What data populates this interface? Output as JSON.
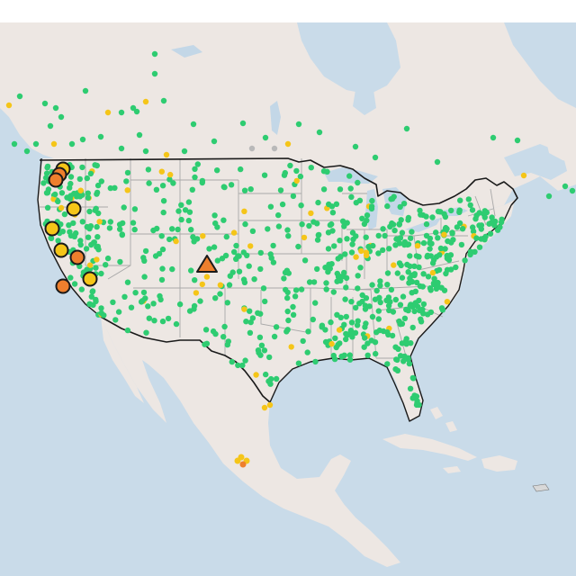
{
  "map": {
    "colors": {
      "water": "#c9dbe9",
      "land": "#ede7e3",
      "land_shade": "#e4ddd8",
      "lakes": "#c3d7e7",
      "state_lines": "#a9a9a9",
      "border": "#1a1a1a",
      "marker_green": "#2ecc71",
      "marker_yellow": "#f5c518",
      "marker_orange": "#ee7f2d",
      "marker_gray": "#b9b9b9",
      "marker_stroke": "#1a1a1a"
    },
    "symbols": [
      "circle-marker",
      "triangle-marker"
    ]
  }
}
